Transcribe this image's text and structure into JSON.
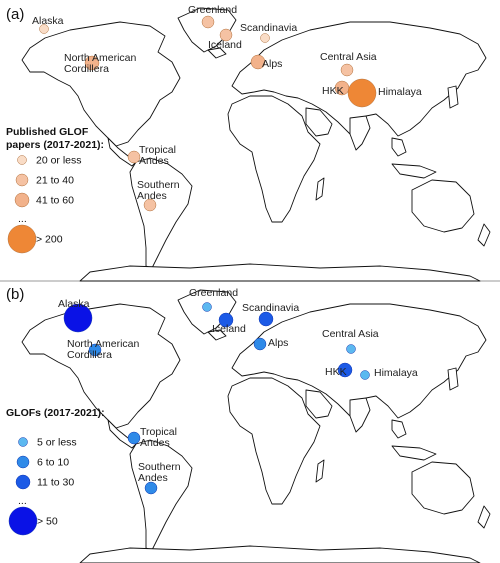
{
  "panels": [
    {
      "label": "(a)",
      "colors": {
        "stroke": "#b0703c"
      },
      "legend": {
        "title": [
          "Published GLOF",
          "papers (2017-2021):"
        ],
        "ellipsis": "...",
        "entries": [
          {
            "text": "20 or less",
            "color": "#f9dcc6"
          },
          {
            "text": "21 to 40",
            "color": "#f5c2a3"
          },
          {
            "text": "41 to 60",
            "color": "#f2b28b"
          },
          {
            "text": "> 200",
            "color": "#ee8736"
          }
        ]
      },
      "regions": [
        {
          "name": "Alaska",
          "cls": 0
        },
        {
          "name": "North American Cordillera",
          "lines": [
            "North American",
            "Cordillera"
          ],
          "cls": 2
        },
        {
          "name": "Greenland",
          "cls": 1
        },
        {
          "name": "Iceland",
          "cls": 1
        },
        {
          "name": "Scandinavia",
          "cls": 0
        },
        {
          "name": "Alps",
          "cls": 2
        },
        {
          "name": "Central Asia",
          "cls": 1
        },
        {
          "name": "HKK",
          "cls": 2
        },
        {
          "name": "Himalaya",
          "cls": 3
        },
        {
          "name": "Tropical Andes",
          "lines": [
            "Tropical",
            "Andes"
          ],
          "cls": 1
        },
        {
          "name": "Southern Andes",
          "lines": [
            "Southern",
            "Andes"
          ],
          "cls": 1
        }
      ]
    },
    {
      "label": "(b)",
      "colors": {
        "stroke": "#1538b0"
      },
      "legend": {
        "title": [
          "GLOFs (2017-2021):"
        ],
        "ellipsis": "...",
        "entries": [
          {
            "text": "5 or less",
            "color": "#5cb8f0"
          },
          {
            "text": "6 to 10",
            "color": "#2f8ae8"
          },
          {
            "text": "11 to 30",
            "color": "#1c5ae6"
          },
          {
            "text": "> 50",
            "color": "#0a12e6"
          }
        ]
      },
      "regions": [
        {
          "name": "Alaska",
          "cls": 3
        },
        {
          "name": "North American Cordillera",
          "lines": [
            "North American",
            "Cordillera"
          ],
          "cls": 1
        },
        {
          "name": "Greenland",
          "cls": 0
        },
        {
          "name": "Iceland",
          "cls": 2
        },
        {
          "name": "Scandinavia",
          "cls": 2
        },
        {
          "name": "Alps",
          "cls": 1
        },
        {
          "name": "Central Asia",
          "cls": 0
        },
        {
          "name": "HKK",
          "cls": 2
        },
        {
          "name": "Himalaya",
          "cls": 0
        },
        {
          "name": "Tropical Andes",
          "lines": [
            "Tropical",
            "Andes"
          ],
          "cls": 1
        },
        {
          "name": "Southern Andes",
          "lines": [
            "Southern",
            "Andes"
          ],
          "cls": 1
        }
      ]
    }
  ]
}
